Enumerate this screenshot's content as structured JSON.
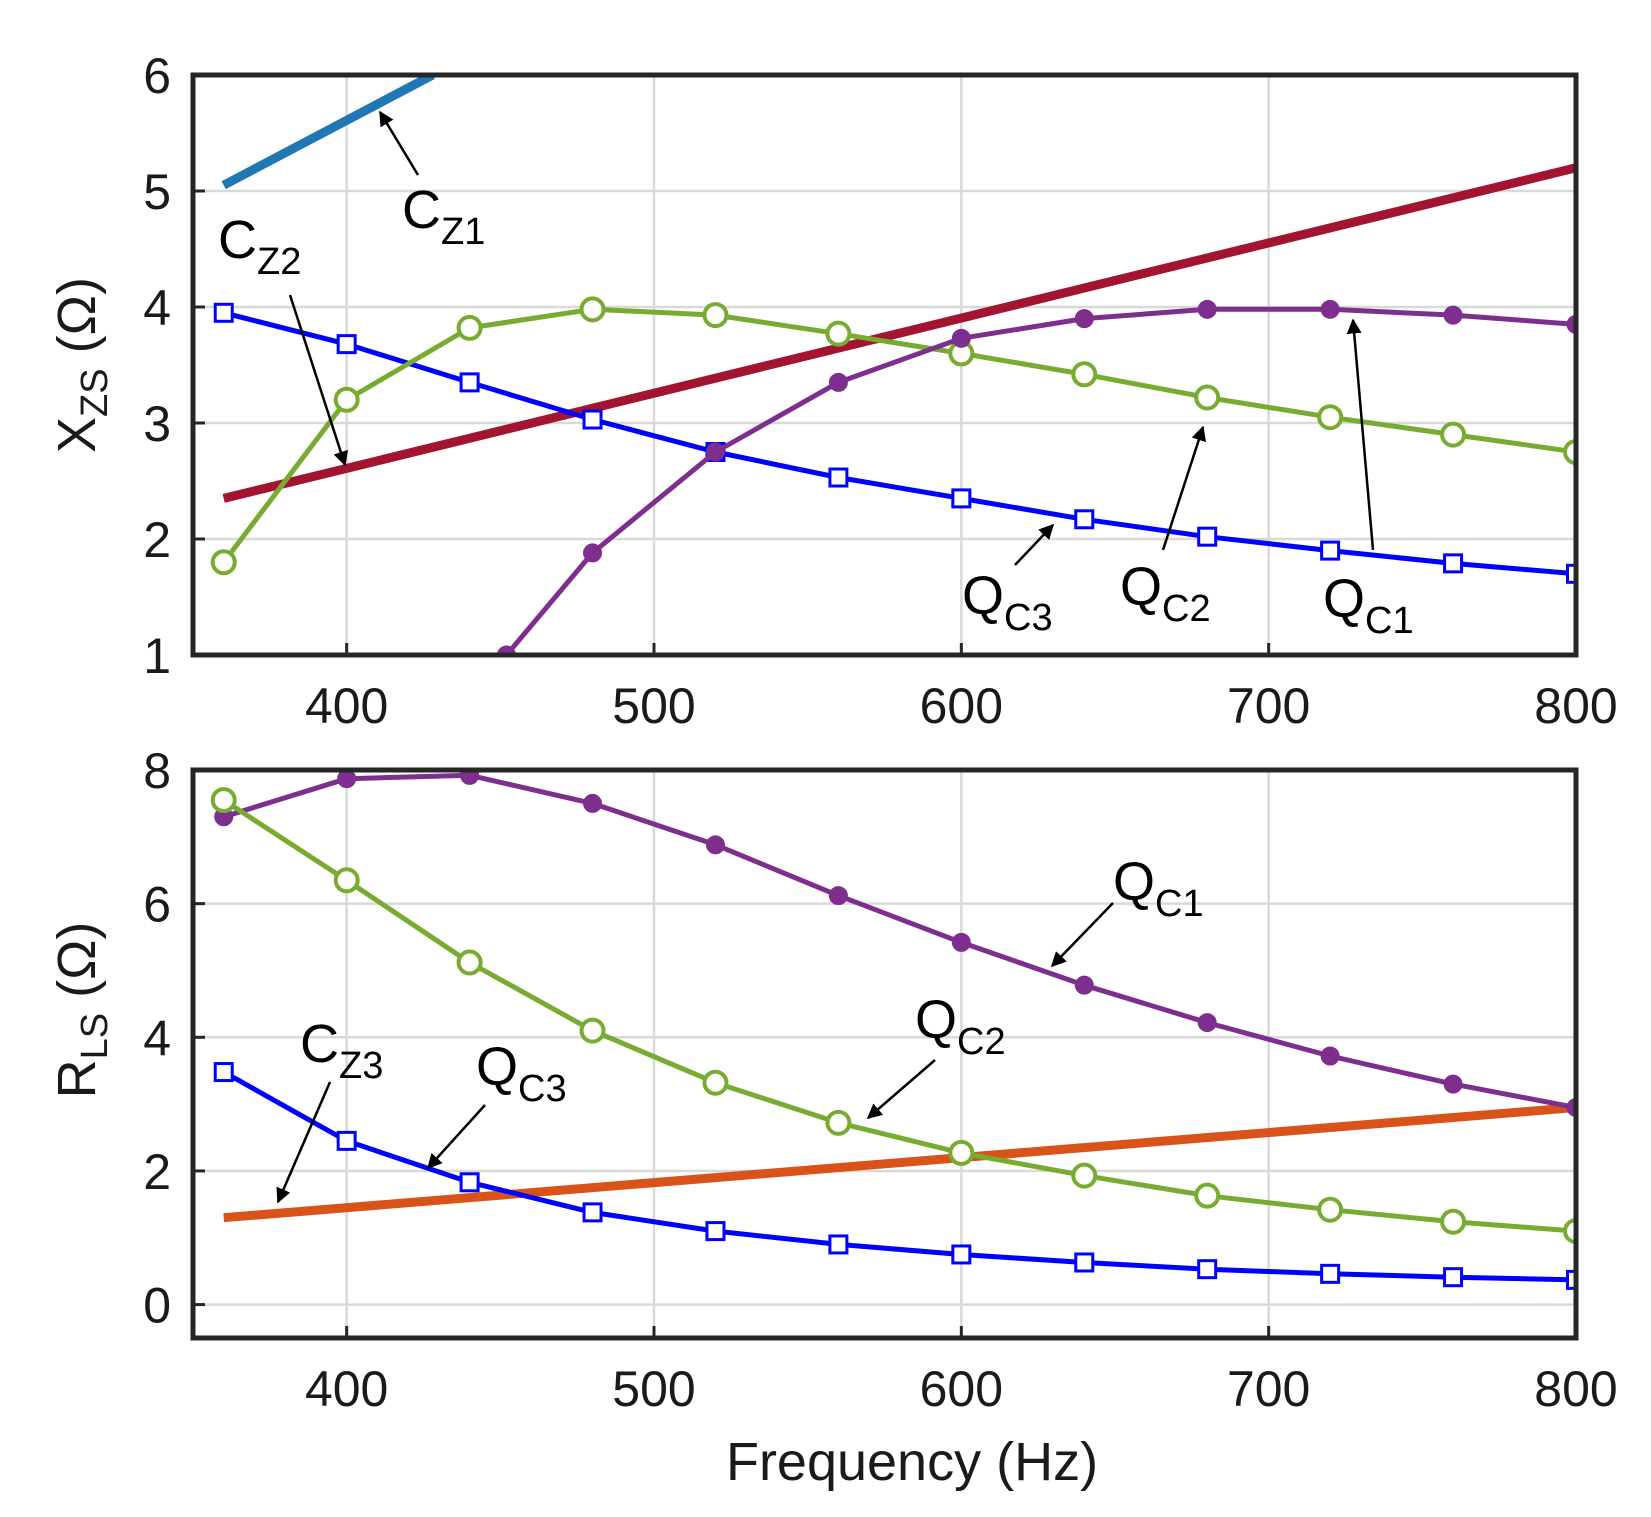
{
  "chart_data": [
    {
      "type": "line",
      "ylabel": "X",
      "ylabel_sub": "ZS",
      "ylabel_unit": " (Ω)",
      "xlabel": "",
      "xlim": [
        350,
        800
      ],
      "ylim": [
        1,
        6
      ],
      "xticks": [
        "400",
        "500",
        "600",
        "700",
        "800"
      ],
      "yticks": [
        "1",
        "2",
        "3",
        "4",
        "5",
        "6"
      ],
      "grid": true,
      "series": [
        {
          "name": "C_Z1",
          "color": "#1f77b4",
          "marker": "none",
          "x": [
            360,
            428
          ],
          "values": [
            5.05,
            6.0
          ]
        },
        {
          "name": "C_Z2",
          "color": "#a2142f",
          "marker": "none",
          "x": [
            360,
            800
          ],
          "values": [
            2.35,
            5.2
          ]
        },
        {
          "name": "Q_C3",
          "color": "#0000ff",
          "marker": "square",
          "x": [
            360,
            400,
            440,
            480,
            520,
            560,
            600,
            640,
            680,
            720,
            760,
            800
          ],
          "values": [
            3.95,
            3.68,
            3.35,
            3.03,
            2.75,
            2.53,
            2.35,
            2.17,
            2.02,
            1.9,
            1.79,
            1.7
          ]
        },
        {
          "name": "Q_C2",
          "color": "#77ac30",
          "marker": "circle",
          "x": [
            360,
            400,
            440,
            480,
            520,
            560,
            600,
            640,
            680,
            720,
            760,
            800
          ],
          "values": [
            1.8,
            3.2,
            3.82,
            3.98,
            3.93,
            3.77,
            3.6,
            3.42,
            3.22,
            3.05,
            2.9,
            2.75
          ]
        },
        {
          "name": "Q_C1",
          "color": "#7e2f8e",
          "marker": "dot",
          "x": [
            452,
            480,
            520,
            560,
            600,
            640,
            680,
            720,
            760,
            800
          ],
          "values": [
            1.0,
            1.88,
            2.75,
            3.35,
            3.73,
            3.9,
            3.98,
            3.98,
            3.93,
            3.85
          ]
        }
      ],
      "annotations": [
        {
          "main": "C",
          "sub": "Z1"
        },
        {
          "main": "C",
          "sub": "Z2"
        },
        {
          "main": "Q",
          "sub": "C3"
        },
        {
          "main": "Q",
          "sub": "C2"
        },
        {
          "main": "Q",
          "sub": "C1"
        }
      ]
    },
    {
      "type": "line",
      "ylabel": "R",
      "ylabel_sub": "LS",
      "ylabel_unit": " (Ω)",
      "xlabel": "Frequency (Hz)",
      "xlim": [
        350,
        800
      ],
      "ylim": [
        -0.5,
        8
      ],
      "xticks": [
        "400",
        "500",
        "600",
        "700",
        "800"
      ],
      "yticks": [
        "0",
        "2",
        "4",
        "6",
        "8"
      ],
      "grid": true,
      "series": [
        {
          "name": "C_Z3",
          "color": "#d95319",
          "marker": "none",
          "x": [
            360,
            800
          ],
          "values": [
            1.3,
            2.95
          ]
        },
        {
          "name": "Q_C1",
          "color": "#7e2f8e",
          "marker": "dot",
          "x": [
            360,
            400,
            440,
            480,
            520,
            560,
            600,
            640,
            680,
            720,
            760,
            800
          ],
          "values": [
            7.3,
            7.87,
            7.92,
            7.5,
            6.88,
            6.12,
            5.42,
            4.78,
            4.22,
            3.72,
            3.3,
            2.95
          ]
        },
        {
          "name": "Q_C2",
          "color": "#77ac30",
          "marker": "circle",
          "x": [
            360,
            400,
            440,
            480,
            520,
            560,
            600,
            640,
            680,
            720,
            760,
            800
          ],
          "values": [
            7.55,
            6.35,
            5.12,
            4.1,
            3.32,
            2.72,
            2.27,
            1.93,
            1.63,
            1.42,
            1.24,
            1.1
          ]
        },
        {
          "name": "Q_C3",
          "color": "#0000ff",
          "marker": "square",
          "x": [
            360,
            400,
            440,
            480,
            520,
            560,
            600,
            640,
            680,
            720,
            760,
            800
          ],
          "values": [
            3.48,
            2.45,
            1.83,
            1.38,
            1.1,
            0.9,
            0.75,
            0.63,
            0.53,
            0.46,
            0.41,
            0.37
          ]
        }
      ],
      "annotations": [
        {
          "main": "Q",
          "sub": "C1"
        },
        {
          "main": "Q",
          "sub": "C2"
        },
        {
          "main": "C",
          "sub": "Z3"
        },
        {
          "main": "Q",
          "sub": "C3"
        }
      ]
    }
  ]
}
